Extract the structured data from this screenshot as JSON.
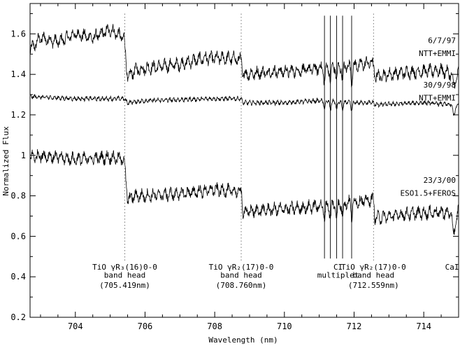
{
  "chart_data": {
    "type": "line",
    "title": "",
    "xlabel": "Wavelength (nm)",
    "ylabel": "Normalized Flux",
    "xlim": [
      702.7,
      715.0
    ],
    "ylim": [
      0.2,
      1.75
    ],
    "x_ticks": [
      "704",
      "706",
      "708",
      "710",
      "712",
      "714"
    ],
    "x_tick_values": [
      704,
      706,
      708,
      710,
      712,
      714
    ],
    "y_ticks": [
      "0.2",
      "0.4",
      "0.6",
      "0.8",
      "1",
      "1.2",
      "1.4",
      "1.6"
    ],
    "y_tick_values": [
      0.2,
      0.4,
      0.6,
      0.8,
      1.0,
      1.2,
      1.4,
      1.6
    ],
    "grid": false,
    "series": [
      {
        "date": "6/7/97",
        "instrument": "NTT+EMMI",
        "points": [
          [
            702.7,
            1.52
          ],
          [
            703.0,
            1.58
          ],
          [
            703.5,
            1.56
          ],
          [
            704.0,
            1.6
          ],
          [
            704.5,
            1.58
          ],
          [
            705.0,
            1.62
          ],
          [
            705.4,
            1.58
          ],
          [
            705.5,
            1.38
          ],
          [
            705.7,
            1.42
          ],
          [
            706.0,
            1.43
          ],
          [
            707.0,
            1.45
          ],
          [
            707.7,
            1.48
          ],
          [
            708.5,
            1.48
          ],
          [
            708.77,
            1.47
          ],
          [
            708.8,
            1.4
          ],
          [
            709.5,
            1.41
          ],
          [
            710.5,
            1.42
          ],
          [
            711.0,
            1.43
          ],
          [
            711.5,
            1.44
          ],
          [
            712.0,
            1.44
          ],
          [
            712.5,
            1.46
          ],
          [
            712.56,
            1.44
          ],
          [
            712.6,
            1.39
          ],
          [
            713.5,
            1.41
          ],
          [
            714.5,
            1.42
          ],
          [
            714.8,
            1.4
          ],
          [
            714.85,
            1.34
          ],
          [
            715.0,
            1.41
          ]
        ]
      },
      {
        "date": "30/9/98",
        "instrument": "NTT+EMMI",
        "points": [
          [
            702.7,
            1.29
          ],
          [
            704.0,
            1.28
          ],
          [
            705.0,
            1.28
          ],
          [
            705.4,
            1.28
          ],
          [
            705.5,
            1.26
          ],
          [
            706.0,
            1.27
          ],
          [
            708.0,
            1.28
          ],
          [
            708.77,
            1.28
          ],
          [
            708.8,
            1.26
          ],
          [
            710.0,
            1.26
          ],
          [
            711.0,
            1.27
          ],
          [
            712.0,
            1.26
          ],
          [
            712.56,
            1.26
          ],
          [
            712.6,
            1.25
          ],
          [
            714.0,
            1.26
          ],
          [
            714.8,
            1.25
          ],
          [
            714.85,
            1.2
          ],
          [
            715.0,
            1.26
          ]
        ]
      },
      {
        "date": "23/3/00",
        "instrument": "ESO1.5+FEROS",
        "points": [
          [
            702.7,
            0.99
          ],
          [
            703.0,
            1.0
          ],
          [
            704.0,
            0.98
          ],
          [
            705.0,
            0.99
          ],
          [
            705.4,
            0.98
          ],
          [
            705.5,
            0.78
          ],
          [
            705.7,
            0.8
          ],
          [
            706.0,
            0.8
          ],
          [
            707.0,
            0.81
          ],
          [
            708.0,
            0.83
          ],
          [
            708.77,
            0.82
          ],
          [
            708.8,
            0.72
          ],
          [
            709.5,
            0.73
          ],
          [
            710.5,
            0.74
          ],
          [
            711.5,
            0.76
          ],
          [
            712.0,
            0.77
          ],
          [
            712.56,
            0.78
          ],
          [
            712.6,
            0.69
          ],
          [
            713.5,
            0.71
          ],
          [
            714.5,
            0.72
          ],
          [
            714.8,
            0.71
          ],
          [
            714.85,
            0.6
          ],
          [
            715.0,
            0.74
          ]
        ]
      }
    ],
    "band_heads": [
      {
        "x": 705.419,
        "line1": "TiO γR₃(16)0-0",
        "line2": "band head",
        "line3": "(705.419nm)"
      },
      {
        "x": 708.76,
        "line1": "TiO γR₂(17)0-0",
        "line2": "band head",
        "line3": "(708.760nm)"
      },
      {
        "x": 712.559,
        "line1": "TiO γR₂(17)0-0",
        "line2": "band head",
        "line3": "(712.559nm)"
      }
    ],
    "ci_multiplet": {
      "label1": "CI",
      "label2": "multiplet",
      "lines": [
        711.15,
        711.32,
        711.5,
        711.67,
        711.93
      ]
    },
    "cai": {
      "label": "CaI",
      "x": 714.85
    }
  }
}
